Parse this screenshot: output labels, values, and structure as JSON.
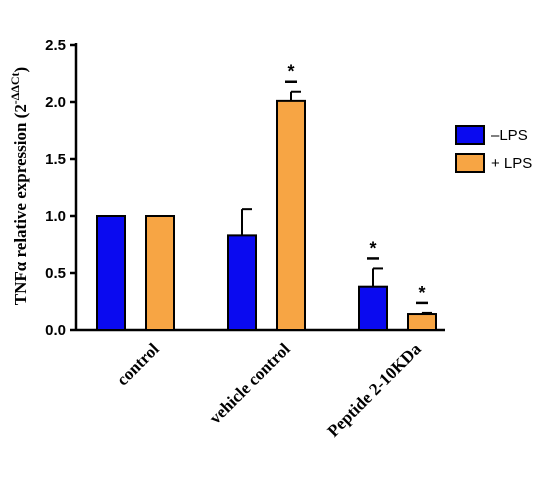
{
  "chart_data": {
    "type": "bar",
    "ylabel": "TNFα relative expression (2",
    "ylabel_sup": "-ΔΔCt",
    "ylabel_close": ")",
    "ylim": [
      0,
      2.5
    ],
    "yticks": [
      "0.0",
      "0.5",
      "1.0",
      "1.5",
      "2.0",
      "2.5"
    ],
    "categories": [
      "control",
      "vehicle control",
      "Peptide 2-10KDa"
    ],
    "series": [
      {
        "name": "–LPS",
        "color": "#0a0af0",
        "values": [
          1.0,
          0.83,
          0.38
        ],
        "errors": [
          0,
          0.23,
          0.16
        ],
        "significance": [
          "",
          "",
          "*"
        ]
      },
      {
        "name": "+ LPS",
        "color": "#f7a544",
        "values": [
          1.0,
          2.01,
          0.14
        ],
        "errors": [
          0,
          0.08,
          0.01
        ],
        "significance": [
          "",
          "*",
          "*"
        ]
      }
    ],
    "legend_position": "right"
  }
}
